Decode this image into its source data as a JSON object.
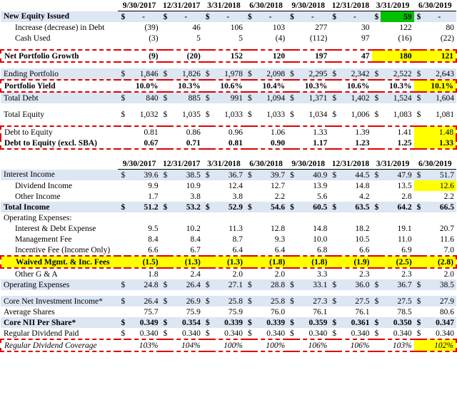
{
  "periods": [
    "9/30/2017",
    "12/31/2017",
    "3/31/2018",
    "6/30/2018",
    "9/30/2018",
    "12/31/2018",
    "3/31/2019",
    "6/30/2019"
  ],
  "table1": {
    "new_equity": {
      "label": "New Equity Issued",
      "values": [
        "$ -",
        "$ -",
        "$ -",
        "$ -",
        "$ -",
        "$ -",
        "$ 59",
        "$ -"
      ]
    },
    "increase_debt": {
      "label": "Increase (decrease) in Debt",
      "values": [
        "(39)",
        "46",
        "106",
        "103",
        "277",
        "30",
        "122",
        "80"
      ]
    },
    "cash_used": {
      "label": "Cash Used",
      "values": [
        "(3)",
        "5",
        "5",
        "(4)",
        "(112)",
        "97",
        "(16)",
        "(22)"
      ]
    },
    "net_growth": {
      "label": "Net Portfolio Growth",
      "values": [
        "(9)",
        "(20)",
        "152",
        "120",
        "197",
        "47",
        "180",
        "121"
      ]
    },
    "ending_portfolio": {
      "label": "Ending Portfolio",
      "values": [
        "1,846",
        "1,826",
        "1,978",
        "2,098",
        "2,295",
        "2,342",
        "2,522",
        "2,643"
      ]
    },
    "portfolio_yield": {
      "label": "Portfolio Yield",
      "values": [
        "10.0%",
        "10.3%",
        "10.6%",
        "10.4%",
        "10.3%",
        "10.6%",
        "10.3%",
        "10.1%"
      ]
    },
    "total_debt": {
      "label": "Total Debt",
      "values": [
        "840",
        "885",
        "991",
        "1,094",
        "1,371",
        "1,402",
        "1,524",
        "1,604"
      ]
    },
    "total_equity": {
      "label": "Total Equity",
      "values": [
        "1,032",
        "1,035",
        "1,033",
        "1,033",
        "1,034",
        "1,006",
        "1,083",
        "1,081"
      ]
    },
    "debt_to_equity": {
      "label": "Debt to Equity",
      "values": [
        "0.81",
        "0.86",
        "0.96",
        "1.06",
        "1.33",
        "1.39",
        "1.41",
        "1.48"
      ]
    },
    "debt_to_equity_sba": {
      "label": "Debt to Equity (excl. SBA)",
      "values": [
        "0.67",
        "0.71",
        "0.81",
        "0.90",
        "1.17",
        "1.23",
        "1.25",
        "1.33"
      ]
    }
  },
  "table2": {
    "interest_income": {
      "label": "Interest Income",
      "values": [
        "39.6",
        "38.5",
        "36.7",
        "39.7",
        "40.9",
        "44.5",
        "47.9",
        "51.7"
      ]
    },
    "dividend_income": {
      "label": "Dividend Income",
      "values": [
        "9.9",
        "10.9",
        "12.4",
        "12.7",
        "13.9",
        "14.8",
        "13.5",
        "12.6"
      ]
    },
    "other_income": {
      "label": "Other Income",
      "values": [
        "1.7",
        "3.8",
        "3.8",
        "2.2",
        "5.6",
        "4.2",
        "2.8",
        "2.2"
      ]
    },
    "total_income": {
      "label": "Total Income",
      "values": [
        "51.2",
        "53.2",
        "52.9",
        "54.6",
        "60.5",
        "63.5",
        "64.2",
        "66.5"
      ]
    },
    "operating_expenses_hdr": {
      "label": "Operating Expenses:"
    },
    "interest_debt_exp": {
      "label": "Interest & Debt Expense",
      "values": [
        "9.5",
        "10.2",
        "11.3",
        "12.8",
        "14.8",
        "18.2",
        "19.1",
        "20.7"
      ]
    },
    "mgmt_fee": {
      "label": "Management Fee",
      "values": [
        "8.4",
        "8.4",
        "8.7",
        "9.3",
        "10.0",
        "10.5",
        "11.0",
        "11.6"
      ]
    },
    "incentive_fee": {
      "label": "Incentive Fee (Income Only)",
      "values": [
        "6.6",
        "6.7",
        "6.4",
        "6.4",
        "6.8",
        "6.6",
        "6.9",
        "7.0"
      ]
    },
    "waived_fees": {
      "label": "Waived Mgmt. & Inc. Fees",
      "values": [
        "(1.5)",
        "(1.3)",
        "(1.3)",
        "(1.8)",
        "(1.8)",
        "(1.9)",
        "(2.5)",
        "(2.8)"
      ]
    },
    "other_ga": {
      "label": "Other G & A",
      "values": [
        "1.8",
        "2.4",
        "2.0",
        "2.0",
        "3.3",
        "2.3",
        "2.3",
        "2.0"
      ]
    },
    "operating_expenses": {
      "label": "Operating Expenses",
      "values": [
        "24.8",
        "26.4",
        "27.1",
        "28.8",
        "33.1",
        "36.0",
        "36.7",
        "38.5"
      ]
    },
    "core_nii": {
      "label": "Core Net Investment Income*",
      "values": [
        "26.4",
        "26.9",
        "25.8",
        "25.8",
        "27.3",
        "27.5",
        "27.5",
        "27.9"
      ]
    },
    "avg_shares": {
      "label": "Average Shares",
      "values": [
        "75.7",
        "75.9",
        "75.9",
        "76.0",
        "76.1",
        "76.1",
        "78.5",
        "80.6"
      ]
    },
    "core_nii_ps": {
      "label": "Core NII Per Share*",
      "values": [
        "0.349",
        "0.354",
        "0.339",
        "0.339",
        "0.359",
        "0.361",
        "0.350",
        "0.347"
      ]
    },
    "reg_dividend": {
      "label": "Regular Dividend Paid",
      "values": [
        "0.340",
        "0.340",
        "0.340",
        "0.340",
        "0.340",
        "0.340",
        "0.340",
        "0.340"
      ]
    },
    "div_coverage": {
      "label": "Regular Dividend Coverage",
      "values": [
        "103%",
        "104%",
        "100%",
        "100%",
        "106%",
        "106%",
        "103%",
        "102%"
      ]
    }
  },
  "colors": {
    "highlight": "#ffff00",
    "green": "#00c000",
    "blue_band": "#dde6f3",
    "red_dash": "#e00000"
  }
}
